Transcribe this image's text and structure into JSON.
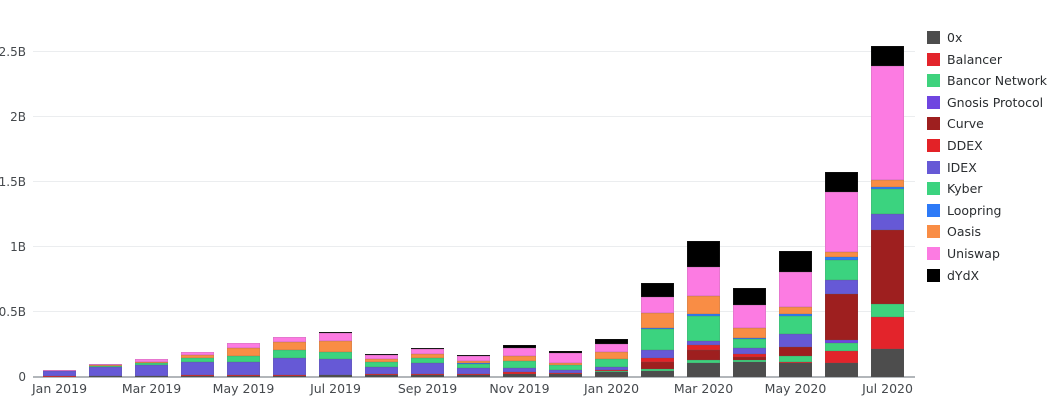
{
  "chart_data": {
    "type": "bar",
    "stacked": true,
    "title": "",
    "xlabel": "",
    "ylabel": "",
    "unit": "B",
    "grid": true,
    "legend_position": "right",
    "ylim": [
      0,
      2.9
    ],
    "categories": [
      "Jan 2019",
      "Feb 2019",
      "Mar 2019",
      "Apr 2019",
      "May 2019",
      "Jun 2019",
      "Jul 2019",
      "Aug 2019",
      "Sep 2019",
      "Oct 2019",
      "Nov 2019",
      "Dec 2019",
      "Jan 2020",
      "Feb 2020",
      "Mar 2020",
      "Apr 2020",
      "May 2020",
      "Jun 2020",
      "Jul 2020"
    ],
    "x_tick_step": 2,
    "y_ticks": [
      {
        "label": "0",
        "value": 0
      },
      {
        "label": "0.5B",
        "value": 0.5
      },
      {
        "label": "1B",
        "value": 1
      },
      {
        "label": "1.5B",
        "value": 1.5
      },
      {
        "label": "2B",
        "value": 2
      },
      {
        "label": "2.5B",
        "value": 2.5
      }
    ],
    "series": [
      {
        "name": "0x",
        "color": "#4d4d4d",
        "values": [
          0.003,
          0.005,
          0.006,
          0.008,
          0.008,
          0.01,
          0.012,
          0.015,
          0.015,
          0.015,
          0.02,
          0.02,
          0.038,
          0.046,
          0.107,
          0.115,
          0.108,
          0.108,
          0.215
        ]
      },
      {
        "name": "Balancer",
        "color": "#e3242b",
        "values": [
          0,
          0,
          0,
          0,
          0,
          0,
          0,
          0,
          0,
          0,
          0,
          0,
          0,
          0,
          0,
          0,
          0.008,
          0.092,
          0.246
        ]
      },
      {
        "name": "Bancor Network",
        "color": "#3ed27d",
        "values": [
          0,
          0,
          0,
          0,
          0,
          0,
          0,
          0,
          0,
          0.004,
          0.005,
          0.005,
          0.008,
          0.015,
          0.023,
          0.015,
          0.046,
          0.062,
          0.1
        ]
      },
      {
        "name": "Gnosis Protocol",
        "color": "#6f45e0",
        "values": [
          0,
          0,
          0,
          0,
          0,
          0,
          0,
          0,
          0,
          0,
          0,
          0,
          0,
          0,
          0,
          0,
          0,
          0.023,
          0
        ]
      },
      {
        "name": "Curve",
        "color": "#9e1f1f",
        "values": [
          0,
          0,
          0,
          0,
          0,
          0,
          0,
          0,
          0,
          0,
          0,
          0,
          0,
          0.054,
          0.077,
          0.023,
          0.07,
          0.354,
          0.57
        ]
      },
      {
        "name": "DDEX",
        "color": "#e32227",
        "values": [
          0.002,
          0.004,
          0.004,
          0.004,
          0.005,
          0.005,
          0.005,
          0.005,
          0.005,
          0.008,
          0.01,
          0.008,
          0.008,
          0.031,
          0.038,
          0.023,
          0,
          0,
          0
        ]
      },
      {
        "name": "IDEX",
        "color": "#6659d6",
        "values": [
          0.038,
          0.065,
          0.08,
          0.105,
          0.1,
          0.135,
          0.125,
          0.06,
          0.09,
          0.04,
          0.035,
          0.018,
          0.023,
          0.062,
          0.031,
          0.046,
          0.1,
          0.108,
          0.123
        ]
      },
      {
        "name": "Kyber",
        "color": "#3bd37f",
        "values": [
          0.003,
          0.012,
          0.015,
          0.028,
          0.045,
          0.058,
          0.05,
          0.035,
          0.04,
          0.035,
          0.05,
          0.042,
          0.058,
          0.162,
          0.19,
          0.07,
          0.14,
          0.154,
          0.19
        ]
      },
      {
        "name": "Loopring",
        "color": "#2d7af7",
        "values": [
          0,
          0,
          0,
          0,
          0,
          0,
          0,
          0,
          0,
          0.003,
          0.005,
          0.003,
          0.005,
          0.008,
          0.015,
          0.008,
          0.012,
          0.023,
          0.015
        ]
      },
      {
        "name": "Oasis",
        "color": "#f98d45",
        "values": [
          0.001,
          0.004,
          0.012,
          0.022,
          0.062,
          0.062,
          0.085,
          0.02,
          0.025,
          0.022,
          0.035,
          0.015,
          0.054,
          0.115,
          0.146,
          0.077,
          0.054,
          0.038,
          0.054
        ]
      },
      {
        "name": "Uniswap",
        "color": "#fc7be2",
        "values": [
          0.002,
          0.014,
          0.018,
          0.028,
          0.04,
          0.04,
          0.065,
          0.038,
          0.04,
          0.035,
          0.065,
          0.072,
          0.062,
          0.123,
          0.223,
          0.177,
          0.27,
          0.46,
          0.88
        ]
      },
      {
        "name": "dYdX",
        "color": "#000000",
        "values": [
          0,
          0,
          0,
          0,
          0,
          0,
          0.003,
          0.002,
          0.005,
          0.005,
          0.02,
          0.015,
          0.038,
          0.108,
          0.2,
          0.13,
          0.16,
          0.154,
          0.154
        ]
      }
    ]
  }
}
